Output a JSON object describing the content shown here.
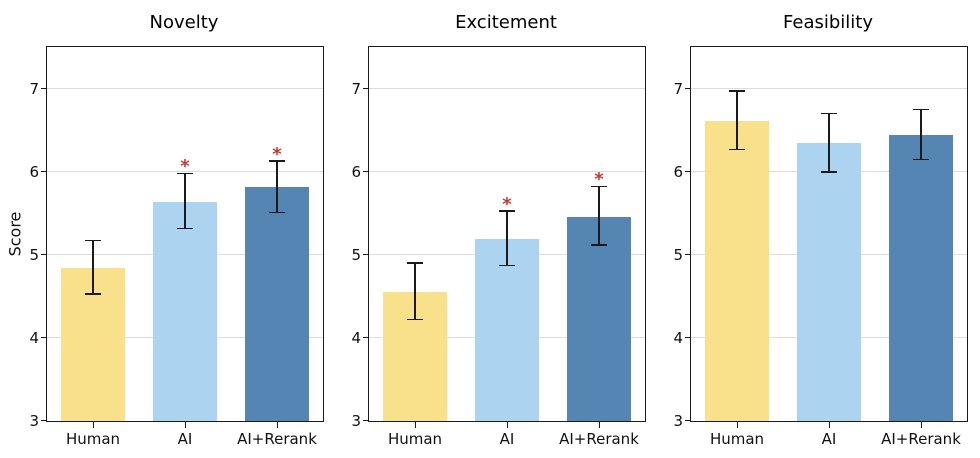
{
  "style": {
    "bar_colors": [
      "#F8E18A",
      "#ACD4F1",
      "#5586B3"
    ],
    "significance_marker": "*",
    "marker_color": "#C0392B",
    "grid_color": "#DCDCDC",
    "axis_color": "#1A1A1A",
    "error_color": "#1A1A1A",
    "background": "#FFFFFF"
  },
  "chart_data": [
    {
      "type": "bar",
      "title": "Novelty",
      "ylabel": "Score",
      "categories": [
        "Human",
        "AI",
        "AI+Rerank"
      ],
      "values": [
        4.84,
        5.64,
        5.81
      ],
      "errors": [
        0.32,
        0.33,
        0.31
      ],
      "significant": [
        false,
        true,
        true
      ],
      "ylim": [
        3,
        7.5
      ],
      "yticks": [
        3,
        4,
        5,
        6,
        7
      ],
      "grid": "horizontal",
      "legend": "none"
    },
    {
      "type": "bar",
      "title": "Excitement",
      "ylabel": "",
      "categories": [
        "Human",
        "AI",
        "AI+Rerank"
      ],
      "values": [
        4.55,
        5.19,
        5.46
      ],
      "errors": [
        0.34,
        0.33,
        0.35
      ],
      "significant": [
        false,
        true,
        true
      ],
      "ylim": [
        3,
        7.5
      ],
      "yticks": [
        3,
        4,
        5,
        6,
        7
      ],
      "grid": "horizontal",
      "legend": "none"
    },
    {
      "type": "bar",
      "title": "Feasibility",
      "ylabel": "",
      "categories": [
        "Human",
        "AI",
        "AI+Rerank"
      ],
      "values": [
        6.61,
        6.34,
        6.44
      ],
      "errors": [
        0.35,
        0.35,
        0.3
      ],
      "significant": [
        false,
        false,
        false
      ],
      "ylim": [
        3,
        7.5
      ],
      "yticks": [
        3,
        4,
        5,
        6,
        7
      ],
      "grid": "horizontal",
      "legend": "none"
    }
  ]
}
